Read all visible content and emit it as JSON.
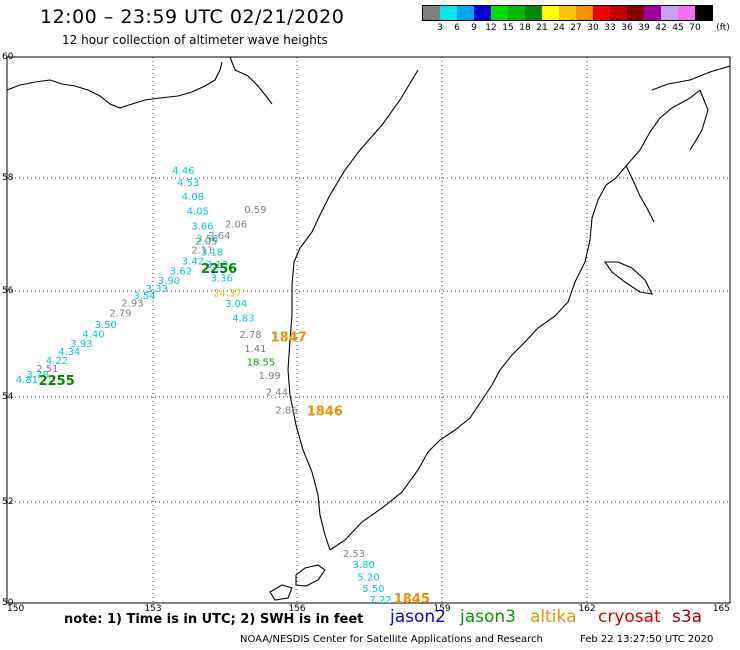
{
  "header": {
    "title": "12:00 – 23:59 UTC 02/21/2020",
    "subtitle": "12 hour collection of altimeter wave heights"
  },
  "legend": {
    "unit": "(ft)",
    "bins": [
      {
        "label": "3",
        "color": "#808080"
      },
      {
        "label": "6",
        "color": "#00e8e8"
      },
      {
        "label": "9",
        "color": "#00a8f0"
      },
      {
        "label": "12",
        "color": "#0000d8"
      },
      {
        "label": "15",
        "color": "#00e000"
      },
      {
        "label": "18",
        "color": "#00b800"
      },
      {
        "label": "21",
        "color": "#008800"
      },
      {
        "label": "24",
        "color": "#ffff00"
      },
      {
        "label": "27",
        "color": "#f8c800"
      },
      {
        "label": "30",
        "color": "#f89000"
      },
      {
        "label": "33",
        "color": "#f00000"
      },
      {
        "label": "36",
        "color": "#c00000"
      },
      {
        "label": "39",
        "color": "#880000"
      },
      {
        "label": "42",
        "color": "#a000a0"
      },
      {
        "label": "45",
        "color": "#c8a0f0"
      },
      {
        "label": "70",
        "color": "#f070f0"
      },
      {
        "label": "",
        "color": "#000000"
      }
    ]
  },
  "map": {
    "lat_labels": [
      "60",
      "58",
      "56",
      "54",
      "52",
      "50"
    ],
    "lon_labels": [
      "150",
      "153",
      "156",
      "159",
      "162",
      "165"
    ],
    "waves": [
      {
        "text": "4.46",
        "color": "#00c8d8",
        "lon": 153.4,
        "lat": 58.07
      },
      {
        "text": "4.53",
        "color": "#00c8d8",
        "lon": 153.5,
        "lat": 57.86
      },
      {
        "text": "4.08",
        "color": "#00c8d8",
        "lon": 153.6,
        "lat": 57.61
      },
      {
        "text": "4.05",
        "color": "#00c8d8",
        "lon": 153.7,
        "lat": 57.35
      },
      {
        "text": "3.66",
        "color": "#00c8d8",
        "lon": 153.8,
        "lat": 57.09
      },
      {
        "text": "3.58",
        "color": "#00c8d8",
        "lon": 153.9,
        "lat": 56.87
      },
      {
        "text": "3.18",
        "color": "#00c8d8",
        "lon": 154.0,
        "lat": 56.63
      },
      {
        "text": "3.13",
        "color": "#00c8d8",
        "lon": 154.1,
        "lat": 56.41
      },
      {
        "text": "3.36",
        "color": "#00c8d8",
        "lon": 154.2,
        "lat": 56.17
      },
      {
        "text": "3.04",
        "color": "#00c8d8",
        "lon": 154.5,
        "lat": 55.7
      },
      {
        "text": "4.83",
        "color": "#00c8d8",
        "lon": 154.65,
        "lat": 55.42
      },
      {
        "text": "0.59",
        "color": "#808080",
        "lon": 154.9,
        "lat": 57.38
      },
      {
        "text": "2.06",
        "color": "#808080",
        "lon": 154.5,
        "lat": 57.12
      },
      {
        "text": "2.64",
        "color": "#808080",
        "lon": 154.15,
        "lat": 56.92
      },
      {
        "text": "2.05",
        "color": "#808080",
        "lon": 153.88,
        "lat": 56.82
      },
      {
        "text": "2.11",
        "color": "#808080",
        "lon": 153.8,
        "lat": 56.66
      },
      {
        "text": "3.42",
        "color": "#00c8d8",
        "lon": 153.6,
        "lat": 56.47
      },
      {
        "text": "3.62",
        "color": "#00c8d8",
        "lon": 153.35,
        "lat": 56.29
      },
      {
        "text": "3.90",
        "color": "#00c8d8",
        "lon": 153.1,
        "lat": 56.12
      },
      {
        "text": "3.33",
        "color": "#00c8d8",
        "lon": 152.85,
        "lat": 55.98
      },
      {
        "text": "3.54",
        "color": "#00c8d8",
        "lon": 152.6,
        "lat": 55.85
      },
      {
        "text": "2.93",
        "color": "#808080",
        "lon": 152.35,
        "lat": 55.71
      },
      {
        "text": "2.79",
        "color": "#808080",
        "lon": 152.1,
        "lat": 55.52
      },
      {
        "text": "3.50",
        "color": "#00c8d8",
        "lon": 151.8,
        "lat": 55.3
      },
      {
        "text": "4.40",
        "color": "#00c8d8",
        "lon": 151.55,
        "lat": 55.12
      },
      {
        "text": "3.93",
        "color": "#00c8d8",
        "lon": 151.3,
        "lat": 54.94
      },
      {
        "text": "4.34",
        "color": "#00c8d8",
        "lon": 151.05,
        "lat": 54.79
      },
      {
        "text": "4.22",
        "color": "#00c8d8",
        "lon": 150.8,
        "lat": 54.62
      },
      {
        "text": "2.51",
        "color": "#808080",
        "lon": 150.6,
        "lat": 54.47
      },
      {
        "text": "3.78",
        "color": "#00c8d8",
        "lon": 150.4,
        "lat": 54.36
      },
      {
        "text": "4.81",
        "color": "#00c8d8",
        "lon": 150.18,
        "lat": 54.26
      },
      {
        "text": "24.37",
        "color": "#f8b800",
        "lon": 154.25,
        "lat": 55.9
      },
      {
        "text": "2.78",
        "color": "#808080",
        "lon": 154.8,
        "lat": 55.11
      },
      {
        "text": "1.41",
        "color": "#808080",
        "lon": 154.9,
        "lat": 54.85
      },
      {
        "text": "18.55",
        "color": "#00b000",
        "lon": 154.95,
        "lat": 54.59
      },
      {
        "text": "1.99",
        "color": "#808080",
        "lon": 155.2,
        "lat": 54.34
      },
      {
        "text": "2.44",
        "color": "#808080",
        "lon": 155.35,
        "lat": 54.03
      },
      {
        "text": "2.86",
        "color": "#808080",
        "lon": 155.55,
        "lat": 53.69
      },
      {
        "text": "2.53",
        "color": "#808080",
        "lon": 156.95,
        "lat": 50.91
      },
      {
        "text": "3.80",
        "color": "#00c8d8",
        "lon": 157.15,
        "lat": 50.69
      },
      {
        "text": "5.20",
        "color": "#00c8d8",
        "lon": 157.25,
        "lat": 50.45
      },
      {
        "text": "5.50",
        "color": "#00c8d8",
        "lon": 157.35,
        "lat": 50.22
      },
      {
        "text": "7.22",
        "color": "#00c8d8",
        "lon": 157.5,
        "lat": 49.99
      }
    ],
    "times": [
      {
        "text": "2256",
        "color": "#008800",
        "lon": 154.0,
        "lat": 56.32
      },
      {
        "text": "2255",
        "color": "#008800",
        "lon": 150.65,
        "lat": 54.23
      },
      {
        "text": "1847",
        "color": "#f09000",
        "lon": 155.45,
        "lat": 55.05
      },
      {
        "text": "1846",
        "color": "#f09000",
        "lon": 156.2,
        "lat": 53.65
      },
      {
        "text": "1845",
        "color": "#f09000",
        "lon": 158.0,
        "lat": 49.97
      }
    ]
  },
  "footer": {
    "note": "note: 1) Time is in UTC; 2) SWH is in feet",
    "satellites": [
      {
        "name": "jason2",
        "color": "#0000e0"
      },
      {
        "name": "jason3",
        "color": "#00a000"
      },
      {
        "name": "altika",
        "color": "#f09000"
      },
      {
        "name": "cryosat",
        "color": "#d00000"
      },
      {
        "name": "s3a",
        "color": "#a00000"
      }
    ],
    "credit": "NOAA/NESDIS Center for Satellite Applications and Research",
    "timestamp": "Feb 22 13:27:50 UTC 2020"
  }
}
